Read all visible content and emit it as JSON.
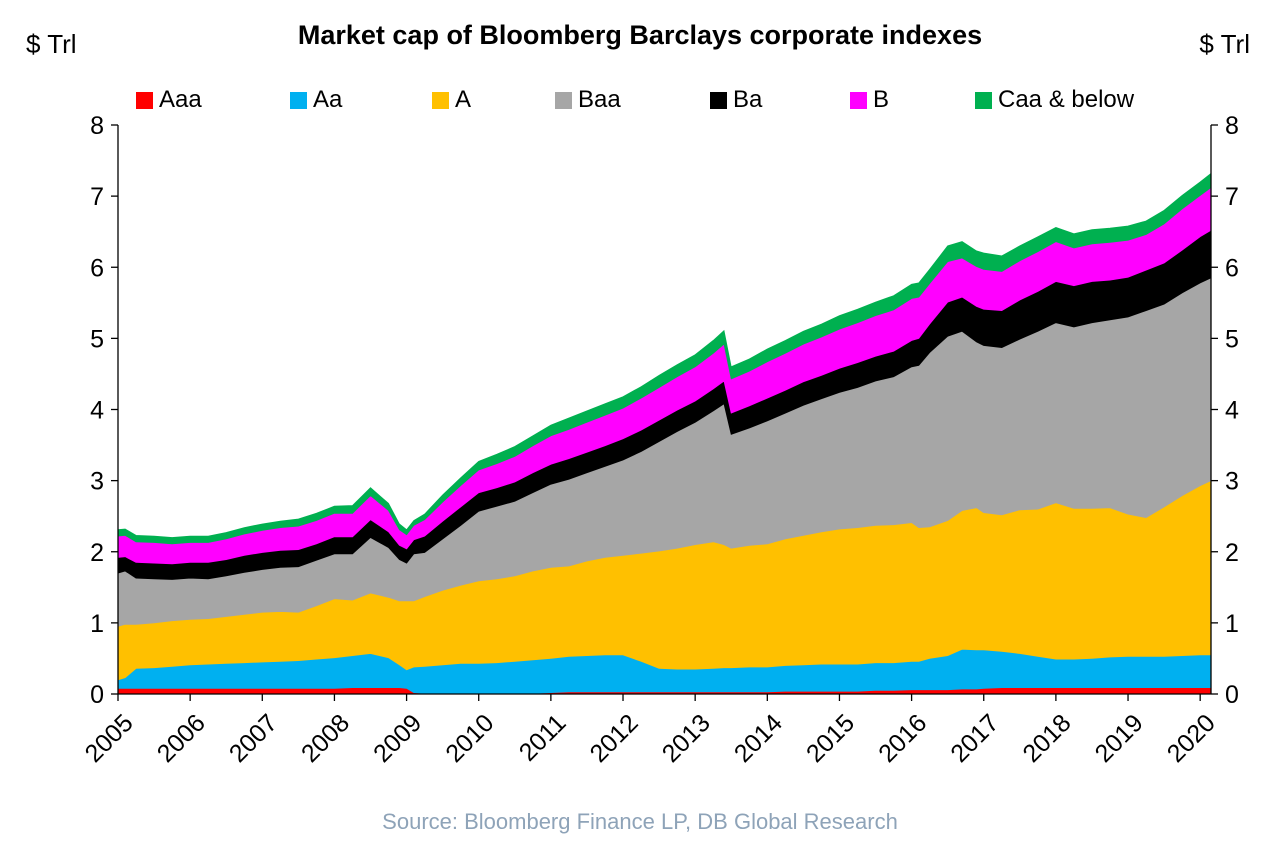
{
  "title": "Market cap of Bloomberg Barclays corporate indexes",
  "unit_left": "$ Trl",
  "unit_right": "$ Trl",
  "source": "Source: Bloomberg Finance LP, DB Global Research",
  "chart_data": {
    "type": "area",
    "stacked": true,
    "title": "Market cap of Bloomberg Barclays corporate indexes",
    "ylabel": "$ Trl",
    "ylim": [
      0,
      8
    ],
    "yticks": [
      "0",
      "1",
      "2",
      "3",
      "4",
      "5",
      "6",
      "7",
      "8"
    ],
    "xticks": [
      "2005",
      "2006",
      "2007",
      "2008",
      "2009",
      "2010",
      "2011",
      "2012",
      "2013",
      "2014",
      "2015",
      "2016",
      "2017",
      "2018",
      "2019",
      "2020"
    ],
    "xlim": [
      2005,
      2020.15
    ],
    "legend_position": "top",
    "grid": false,
    "x": [
      2005.0,
      2005.1,
      2005.25,
      2005.5,
      2005.75,
      2006.0,
      2006.25,
      2006.5,
      2006.75,
      2007.0,
      2007.25,
      2007.5,
      2007.75,
      2008.0,
      2008.25,
      2008.5,
      2008.75,
      2008.9,
      2009.0,
      2009.1,
      2009.25,
      2009.5,
      2009.75,
      2010.0,
      2010.25,
      2010.5,
      2010.75,
      2011.0,
      2011.25,
      2011.5,
      2011.75,
      2012.0,
      2012.25,
      2012.5,
      2012.75,
      2013.0,
      2013.25,
      2013.4,
      2013.5,
      2013.75,
      2014.0,
      2014.25,
      2014.5,
      2014.75,
      2015.0,
      2015.25,
      2015.5,
      2015.75,
      2016.0,
      2016.1,
      2016.25,
      2016.5,
      2016.7,
      2016.9,
      2017.0,
      2017.25,
      2017.5,
      2017.75,
      2018.0,
      2018.25,
      2018.5,
      2018.75,
      2019.0,
      2019.25,
      2019.5,
      2019.75,
      2020.0,
      2020.15
    ],
    "series": [
      {
        "name": "Aaa",
        "color": "#ff0000",
        "values": [
          0.08,
          0.08,
          0.08,
          0.08,
          0.08,
          0.08,
          0.08,
          0.08,
          0.08,
          0.08,
          0.08,
          0.08,
          0.08,
          0.08,
          0.09,
          0.09,
          0.09,
          0.09,
          0.08,
          0.02,
          0.01,
          0.01,
          0.01,
          0.01,
          0.01,
          0.01,
          0.01,
          0.02,
          0.03,
          0.03,
          0.03,
          0.03,
          0.03,
          0.03,
          0.03,
          0.03,
          0.03,
          0.03,
          0.03,
          0.03,
          0.03,
          0.04,
          0.04,
          0.04,
          0.04,
          0.04,
          0.05,
          0.05,
          0.06,
          0.06,
          0.06,
          0.06,
          0.07,
          0.07,
          0.08,
          0.09,
          0.09,
          0.09,
          0.09,
          0.09,
          0.09,
          0.09,
          0.09,
          0.09,
          0.09,
          0.09,
          0.09,
          0.09
        ]
      },
      {
        "name": "Aa",
        "color": "#00b0f0",
        "values": [
          0.12,
          0.15,
          0.28,
          0.29,
          0.31,
          0.33,
          0.34,
          0.35,
          0.36,
          0.37,
          0.38,
          0.39,
          0.41,
          0.43,
          0.45,
          0.48,
          0.42,
          0.32,
          0.26,
          0.36,
          0.38,
          0.4,
          0.42,
          0.42,
          0.43,
          0.45,
          0.47,
          0.48,
          0.5,
          0.51,
          0.52,
          0.52,
          0.43,
          0.33,
          0.32,
          0.32,
          0.33,
          0.34,
          0.34,
          0.35,
          0.35,
          0.36,
          0.37,
          0.38,
          0.38,
          0.38,
          0.39,
          0.39,
          0.4,
          0.4,
          0.44,
          0.48,
          0.56,
          0.55,
          0.54,
          0.51,
          0.48,
          0.44,
          0.4,
          0.4,
          0.41,
          0.43,
          0.44,
          0.44,
          0.44,
          0.45,
          0.46,
          0.46
        ]
      },
      {
        "name": "A",
        "color": "#ffc000",
        "values": [
          0.75,
          0.75,
          0.62,
          0.63,
          0.64,
          0.64,
          0.64,
          0.66,
          0.68,
          0.7,
          0.7,
          0.68,
          0.75,
          0.83,
          0.78,
          0.85,
          0.85,
          0.9,
          0.97,
          0.93,
          0.98,
          1.05,
          1.1,
          1.16,
          1.18,
          1.2,
          1.25,
          1.28,
          1.27,
          1.33,
          1.37,
          1.4,
          1.52,
          1.65,
          1.7,
          1.75,
          1.78,
          1.73,
          1.68,
          1.71,
          1.73,
          1.78,
          1.82,
          1.86,
          1.9,
          1.92,
          1.93,
          1.94,
          1.95,
          1.88,
          1.85,
          1.9,
          1.95,
          2.0,
          1.93,
          1.92,
          2.02,
          2.07,
          2.2,
          2.12,
          2.11,
          2.1,
          2.0,
          1.95,
          2.1,
          2.25,
          2.38,
          2.45
        ]
      },
      {
        "name": "Baa",
        "color": "#a6a6a6",
        "values": [
          0.75,
          0.75,
          0.65,
          0.62,
          0.58,
          0.58,
          0.56,
          0.57,
          0.59,
          0.6,
          0.62,
          0.64,
          0.64,
          0.63,
          0.65,
          0.78,
          0.7,
          0.58,
          0.53,
          0.66,
          0.62,
          0.72,
          0.84,
          0.98,
          1.02,
          1.05,
          1.1,
          1.17,
          1.22,
          1.24,
          1.28,
          1.34,
          1.43,
          1.54,
          1.64,
          1.72,
          1.84,
          1.98,
          1.6,
          1.65,
          1.73,
          1.77,
          1.83,
          1.87,
          1.92,
          1.97,
          2.03,
          2.08,
          2.19,
          2.28,
          2.45,
          2.59,
          2.52,
          2.33,
          2.35,
          2.35,
          2.4,
          2.5,
          2.53,
          2.55,
          2.61,
          2.64,
          2.77,
          2.91,
          2.85,
          2.85,
          2.85,
          2.85
        ]
      },
      {
        "name": "Ba",
        "color": "#000000",
        "values": [
          0.22,
          0.2,
          0.22,
          0.22,
          0.22,
          0.22,
          0.23,
          0.23,
          0.24,
          0.24,
          0.24,
          0.24,
          0.23,
          0.24,
          0.24,
          0.25,
          0.22,
          0.2,
          0.2,
          0.2,
          0.23,
          0.25,
          0.26,
          0.26,
          0.26,
          0.27,
          0.28,
          0.28,
          0.29,
          0.29,
          0.29,
          0.3,
          0.3,
          0.3,
          0.3,
          0.3,
          0.31,
          0.32,
          0.3,
          0.31,
          0.32,
          0.32,
          0.33,
          0.33,
          0.34,
          0.35,
          0.35,
          0.36,
          0.37,
          0.38,
          0.4,
          0.48,
          0.48,
          0.5,
          0.51,
          0.52,
          0.55,
          0.56,
          0.58,
          0.58,
          0.58,
          0.56,
          0.56,
          0.57,
          0.58,
          0.6,
          0.65,
          0.67
        ]
      },
      {
        "name": "B",
        "color": "#ff00ff",
        "values": [
          0.3,
          0.3,
          0.29,
          0.29,
          0.28,
          0.28,
          0.28,
          0.29,
          0.3,
          0.31,
          0.32,
          0.33,
          0.33,
          0.33,
          0.33,
          0.34,
          0.3,
          0.22,
          0.2,
          0.2,
          0.23,
          0.27,
          0.3,
          0.32,
          0.34,
          0.36,
          0.38,
          0.4,
          0.41,
          0.42,
          0.43,
          0.43,
          0.45,
          0.46,
          0.47,
          0.48,
          0.5,
          0.52,
          0.48,
          0.49,
          0.51,
          0.52,
          0.53,
          0.54,
          0.55,
          0.56,
          0.57,
          0.58,
          0.59,
          0.58,
          0.57,
          0.57,
          0.55,
          0.56,
          0.56,
          0.55,
          0.55,
          0.56,
          0.56,
          0.53,
          0.53,
          0.53,
          0.52,
          0.5,
          0.55,
          0.58,
          0.58,
          0.6
        ]
      },
      {
        "name": "Caa & below",
        "color": "#00b050",
        "values": [
          0.09,
          0.09,
          0.09,
          0.09,
          0.09,
          0.09,
          0.09,
          0.09,
          0.09,
          0.09,
          0.09,
          0.1,
          0.1,
          0.1,
          0.11,
          0.11,
          0.1,
          0.08,
          0.07,
          0.07,
          0.08,
          0.1,
          0.11,
          0.12,
          0.13,
          0.14,
          0.14,
          0.15,
          0.16,
          0.16,
          0.16,
          0.16,
          0.16,
          0.17,
          0.17,
          0.17,
          0.18,
          0.19,
          0.17,
          0.17,
          0.18,
          0.18,
          0.18,
          0.18,
          0.19,
          0.19,
          0.19,
          0.2,
          0.2,
          0.2,
          0.2,
          0.22,
          0.23,
          0.22,
          0.23,
          0.22,
          0.21,
          0.21,
          0.2,
          0.2,
          0.2,
          0.2,
          0.2,
          0.19,
          0.19,
          0.19,
          0.19,
          0.2
        ]
      }
    ]
  }
}
